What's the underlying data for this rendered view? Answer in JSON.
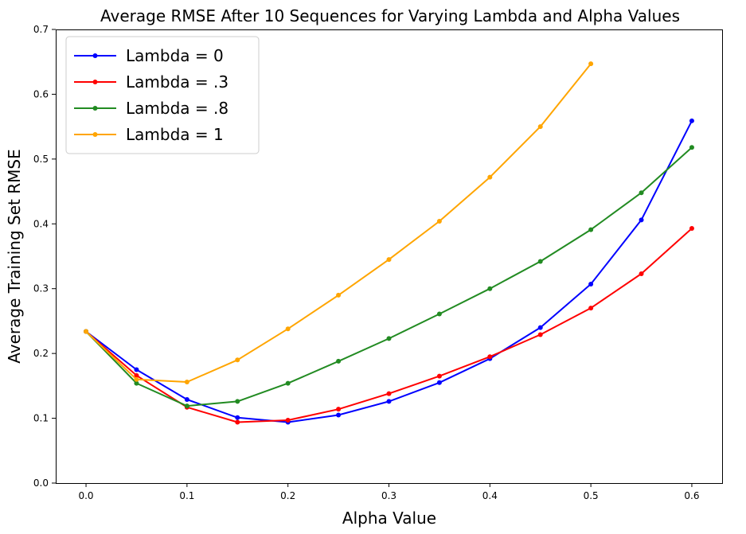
{
  "chart_data": {
    "type": "line",
    "title": "Average RMSE After 10 Sequences for Varying Lambda and Alpha Values",
    "xlabel": "Alpha Value",
    "ylabel": "Average Training Set RMSE",
    "xlim": [
      -0.03,
      0.63
    ],
    "ylim": [
      0.0,
      0.7
    ],
    "xticks": [
      0.0,
      0.1,
      0.2,
      0.3,
      0.4,
      0.5,
      0.6
    ],
    "xtick_labels": [
      "0.0",
      "0.1",
      "0.2",
      "0.3",
      "0.4",
      "0.5",
      "0.6"
    ],
    "yticks": [
      0.0,
      0.1,
      0.2,
      0.3,
      0.4,
      0.5,
      0.6,
      0.7
    ],
    "ytick_labels": [
      "0.0",
      "0.1",
      "0.2",
      "0.3",
      "0.4",
      "0.5",
      "0.6",
      "0.7"
    ],
    "grid": false,
    "legend_position": "top-left",
    "series": [
      {
        "name": "Lambda = 0",
        "color": "#0000ff",
        "x": [
          0.0,
          0.05,
          0.1,
          0.15,
          0.2,
          0.25,
          0.3,
          0.35,
          0.4,
          0.45,
          0.5,
          0.55,
          0.6
        ],
        "y": [
          0.234,
          0.175,
          0.129,
          0.101,
          0.094,
          0.105,
          0.126,
          0.155,
          0.192,
          0.24,
          0.307,
          0.406,
          0.559
        ]
      },
      {
        "name": "Lambda = .3",
        "color": "#ff0000",
        "x": [
          0.0,
          0.05,
          0.1,
          0.15,
          0.2,
          0.25,
          0.3,
          0.35,
          0.4,
          0.45,
          0.5,
          0.55,
          0.6
        ],
        "y": [
          0.234,
          0.166,
          0.117,
          0.094,
          0.097,
          0.114,
          0.138,
          0.165,
          0.195,
          0.229,
          0.27,
          0.323,
          0.393
        ]
      },
      {
        "name": "Lambda = .8",
        "color": "#228b22",
        "x": [
          0.0,
          0.05,
          0.1,
          0.15,
          0.2,
          0.25,
          0.3,
          0.35,
          0.4,
          0.45,
          0.5,
          0.55,
          0.6
        ],
        "y": [
          0.234,
          0.154,
          0.119,
          0.126,
          0.154,
          0.188,
          0.223,
          0.261,
          0.3,
          0.342,
          0.391,
          0.448,
          0.518
        ]
      },
      {
        "name": "Lambda = 1",
        "color": "#ffa500",
        "x": [
          0.0,
          0.05,
          0.1,
          0.15,
          0.2,
          0.25,
          0.3,
          0.35,
          0.4,
          0.45,
          0.5
        ],
        "y": [
          0.234,
          0.16,
          0.156,
          0.19,
          0.238,
          0.29,
          0.345,
          0.404,
          0.472,
          0.55,
          0.647
        ]
      }
    ]
  }
}
